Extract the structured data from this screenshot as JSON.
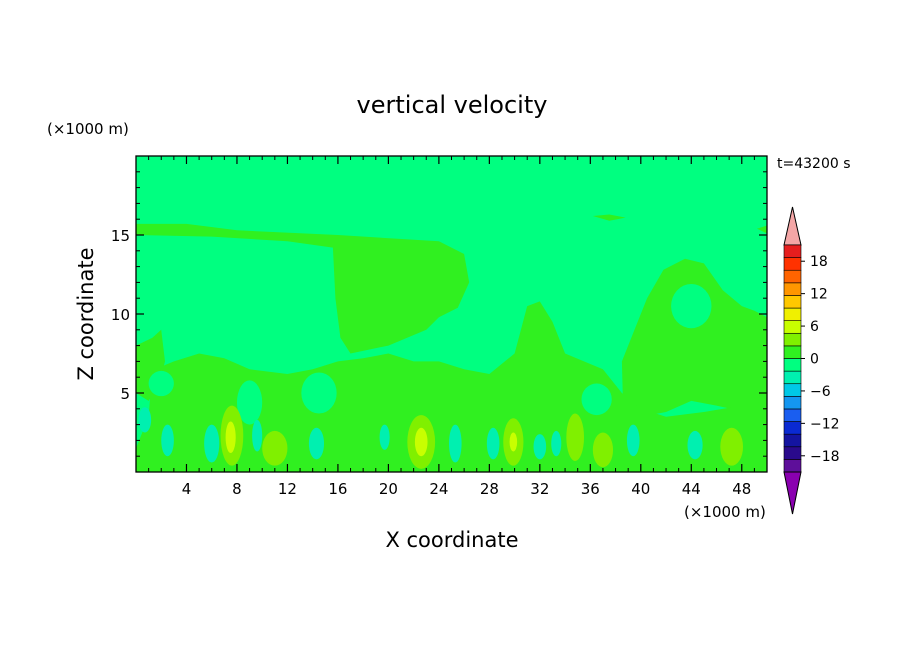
{
  "chart_data": {
    "type": "heatmap",
    "title": "vertical velocity",
    "xlabel": "X coordinate",
    "ylabel": "Z coordinate",
    "x_unit": "(×1000 m)",
    "y_unit": "(×1000 m)",
    "time_label": "t=43200 s",
    "xlim": [
      0,
      50
    ],
    "ylim": [
      0,
      20
    ],
    "x_ticks": [
      4,
      8,
      12,
      16,
      20,
      24,
      28,
      32,
      36,
      40,
      44,
      48
    ],
    "y_ticks": [
      5,
      10,
      15
    ],
    "x_tick_labels": [
      "4",
      "8",
      "12",
      "16",
      "20",
      "24",
      "28",
      "32",
      "36",
      "40",
      "44",
      "48"
    ],
    "y_tick_labels": [
      "5",
      "10",
      "15"
    ],
    "colorbar": {
      "labels": [
        "18",
        "12",
        "6",
        "0",
        "−6",
        "−12",
        "−18"
      ],
      "label_values": [
        18,
        12,
        6,
        0,
        -6,
        -12,
        -18
      ],
      "range": [
        -21,
        21
      ],
      "step": 3,
      "colors": [
        "#5e0f9a",
        "#2a0a8c",
        "#1414a0",
        "#0a2ad2",
        "#1a5ef0",
        "#1496f0",
        "#00c8e6",
        "#00f0b0",
        "#00ff80",
        "#30f020",
        "#80f000",
        "#c8ff00",
        "#f0f000",
        "#ffc800",
        "#ff9600",
        "#ff6400",
        "#ff3200",
        "#e61e1e"
      ],
      "over_color": "#f4a6a6",
      "under_color": "#8a00b0"
    },
    "background_color": "#00ff80",
    "regions": [
      {
        "level": 0,
        "color": "#30f020",
        "shape": "polygon",
        "points": [
          [
            0,
            15.7
          ],
          [
            4,
            15.7
          ],
          [
            8,
            15.3
          ],
          [
            16,
            15.0
          ],
          [
            24,
            14.6
          ],
          [
            26,
            13.8
          ],
          [
            26.4,
            12.0
          ],
          [
            25.5,
            10.4
          ],
          [
            24,
            9.8
          ],
          [
            23,
            9.0
          ],
          [
            20,
            8.0
          ],
          [
            17,
            7.5
          ],
          [
            16.2,
            8.5
          ],
          [
            15.8,
            11
          ],
          [
            15.6,
            14.2
          ],
          [
            12,
            14.6
          ],
          [
            6,
            14.9
          ],
          [
            0,
            15.0
          ]
        ]
      },
      {
        "level": 0,
        "color": "#30f020",
        "shape": "polygon",
        "points": [
          [
            38.6,
            4
          ],
          [
            38.5,
            7
          ],
          [
            39.5,
            9
          ],
          [
            40.5,
            11
          ],
          [
            41.8,
            12.8
          ],
          [
            43.5,
            13.5
          ],
          [
            45,
            13.2
          ],
          [
            46.5,
            11.5
          ],
          [
            48,
            10.5
          ],
          [
            49,
            10.2
          ],
          [
            50,
            9.8
          ],
          [
            50,
            3.5
          ],
          [
            46,
            4.2
          ],
          [
            44,
            4.5
          ],
          [
            42,
            3.8
          ],
          [
            40,
            3.5
          ]
        ]
      },
      {
        "level": 0,
        "color": "#30f020",
        "shape": "polygon",
        "points": [
          [
            1.5,
            6.5
          ],
          [
            3,
            7
          ],
          [
            5,
            7.5
          ],
          [
            7,
            7.2
          ],
          [
            9,
            6.5
          ],
          [
            12,
            6.2
          ],
          [
            14,
            6.5
          ],
          [
            16,
            7
          ],
          [
            18,
            7.2
          ],
          [
            20,
            7.5
          ],
          [
            22,
            7
          ],
          [
            24,
            7
          ],
          [
            26,
            6.5
          ],
          [
            28,
            6.2
          ],
          [
            30,
            7.5
          ],
          [
            31,
            10.5
          ],
          [
            32,
            10.8
          ],
          [
            33,
            9.5
          ],
          [
            34,
            7.5
          ],
          [
            35.5,
            7.0
          ],
          [
            37,
            6.5
          ],
          [
            38.5,
            5
          ],
          [
            40,
            4
          ],
          [
            42,
            3.5
          ],
          [
            45,
            3.8
          ],
          [
            48,
            4.2
          ],
          [
            50,
            4.5
          ],
          [
            50,
            0
          ],
          [
            0,
            0
          ],
          [
            0,
            1.5
          ],
          [
            1,
            3.5
          ],
          [
            1.2,
            5.5
          ]
        ]
      },
      {
        "level": 0,
        "color": "#30f020",
        "shape": "polygon",
        "points": [
          [
            0,
            8
          ],
          [
            1.3,
            8.5
          ],
          [
            2,
            9
          ],
          [
            2.3,
            7
          ],
          [
            1.8,
            5.5
          ],
          [
            1,
            4.5
          ],
          [
            0,
            5
          ]
        ]
      },
      {
        "level": 0,
        "color": "#30f020",
        "shape": "polygon",
        "points": [
          [
            36.2,
            16.2
          ],
          [
            37.5,
            16.3
          ],
          [
            38.8,
            16.1
          ],
          [
            37.5,
            15.9
          ]
        ]
      },
      {
        "level": 0,
        "color": "#30f020",
        "shape": "polygon",
        "points": [
          [
            49.2,
            15.4
          ],
          [
            50,
            15.6
          ],
          [
            50,
            15.1
          ]
        ]
      },
      {
        "level": -3,
        "color": "#00ff80",
        "shape": "ellipse",
        "cx": 44.0,
        "cy": 10.5,
        "rx": 1.6,
        "ry": 1.4
      },
      {
        "level": -3,
        "color": "#00ff80",
        "shape": "ellipse",
        "cx": 2.0,
        "cy": 5.6,
        "rx": 1.0,
        "ry": 0.8
      },
      {
        "level": -3,
        "color": "#00ff80",
        "shape": "ellipse",
        "cx": 9.0,
        "cy": 4.4,
        "rx": 1.0,
        "ry": 1.4
      },
      {
        "level": -3,
        "color": "#00ff80",
        "shape": "ellipse",
        "cx": 14.5,
        "cy": 5.0,
        "rx": 1.4,
        "ry": 1.3
      },
      {
        "level": -3,
        "color": "#00ff80",
        "shape": "ellipse",
        "cx": 36.5,
        "cy": 4.6,
        "rx": 1.2,
        "ry": 1.0
      },
      {
        "level": -6,
        "color": "#00f0b0",
        "shape": "ellipse",
        "cx": 0.7,
        "cy": 3.3,
        "rx": 0.5,
        "ry": 0.8
      },
      {
        "level": -6,
        "color": "#00f0b0",
        "shape": "ellipse",
        "cx": 2.5,
        "cy": 2.0,
        "rx": 0.5,
        "ry": 1.0
      },
      {
        "level": -6,
        "color": "#00f0b0",
        "shape": "ellipse",
        "cx": 6.0,
        "cy": 1.8,
        "rx": 0.6,
        "ry": 1.2
      },
      {
        "level": -6,
        "color": "#00f0b0",
        "shape": "ellipse",
        "cx": 9.6,
        "cy": 2.3,
        "rx": 0.4,
        "ry": 1.0
      },
      {
        "level": -6,
        "color": "#00f0b0",
        "shape": "ellipse",
        "cx": 14.3,
        "cy": 1.8,
        "rx": 0.6,
        "ry": 1.0
      },
      {
        "level": -6,
        "color": "#00f0b0",
        "shape": "ellipse",
        "cx": 19.7,
        "cy": 2.2,
        "rx": 0.4,
        "ry": 0.8
      },
      {
        "level": -6,
        "color": "#00f0b0",
        "shape": "ellipse",
        "cx": 25.3,
        "cy": 1.8,
        "rx": 0.5,
        "ry": 1.2
      },
      {
        "level": -6,
        "color": "#00f0b0",
        "shape": "ellipse",
        "cx": 28.3,
        "cy": 1.8,
        "rx": 0.5,
        "ry": 1.0
      },
      {
        "level": -6,
        "color": "#00f0b0",
        "shape": "ellipse",
        "cx": 32.0,
        "cy": 1.6,
        "rx": 0.5,
        "ry": 0.8
      },
      {
        "level": -6,
        "color": "#00f0b0",
        "shape": "ellipse",
        "cx": 33.3,
        "cy": 1.8,
        "rx": 0.4,
        "ry": 0.8
      },
      {
        "level": -6,
        "color": "#00f0b0",
        "shape": "ellipse",
        "cx": 39.4,
        "cy": 2.0,
        "rx": 0.5,
        "ry": 1.0
      },
      {
        "level": -6,
        "color": "#00f0b0",
        "shape": "ellipse",
        "cx": 44.3,
        "cy": 1.7,
        "rx": 0.6,
        "ry": 0.9
      },
      {
        "level": 3,
        "color": "#80f000",
        "shape": "ellipse",
        "cx": 7.6,
        "cy": 2.3,
        "rx": 0.9,
        "ry": 1.9
      },
      {
        "level": 3,
        "color": "#80f000",
        "shape": "ellipse",
        "cx": 11.0,
        "cy": 1.5,
        "rx": 1.0,
        "ry": 1.1
      },
      {
        "level": 3,
        "color": "#80f000",
        "shape": "ellipse",
        "cx": 22.6,
        "cy": 1.9,
        "rx": 1.1,
        "ry": 1.7
      },
      {
        "level": 3,
        "color": "#80f000",
        "shape": "ellipse",
        "cx": 29.9,
        "cy": 1.9,
        "rx": 0.8,
        "ry": 1.5
      },
      {
        "level": 3,
        "color": "#80f000",
        "shape": "ellipse",
        "cx": 34.8,
        "cy": 2.2,
        "rx": 0.7,
        "ry": 1.5
      },
      {
        "level": 3,
        "color": "#80f000",
        "shape": "ellipse",
        "cx": 37.0,
        "cy": 1.4,
        "rx": 0.8,
        "ry": 1.1
      },
      {
        "level": 3,
        "color": "#80f000",
        "shape": "ellipse",
        "cx": 47.2,
        "cy": 1.6,
        "rx": 0.9,
        "ry": 1.2
      },
      {
        "level": 6,
        "color": "#c8ff00",
        "shape": "ellipse",
        "cx": 7.5,
        "cy": 2.2,
        "rx": 0.4,
        "ry": 1.0
      },
      {
        "level": 6,
        "color": "#c8ff00",
        "shape": "ellipse",
        "cx": 22.6,
        "cy": 1.9,
        "rx": 0.5,
        "ry": 0.9
      },
      {
        "level": 6,
        "color": "#c8ff00",
        "shape": "ellipse",
        "cx": 29.9,
        "cy": 1.9,
        "rx": 0.3,
        "ry": 0.6
      }
    ]
  }
}
